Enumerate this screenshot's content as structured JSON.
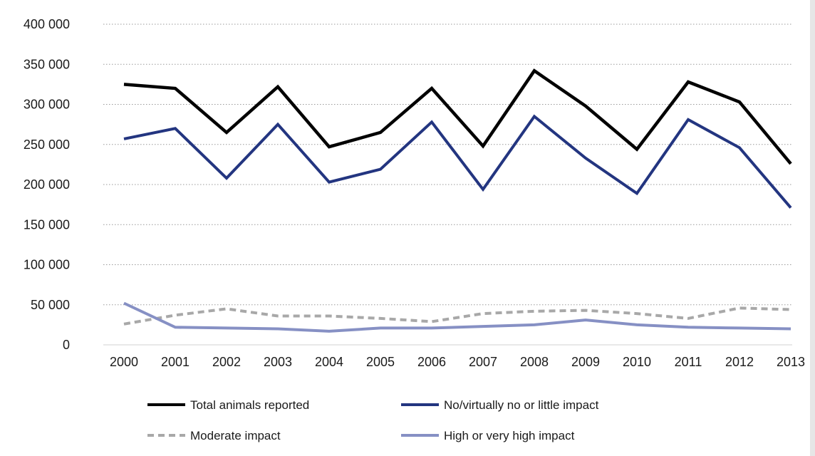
{
  "chart_data": {
    "type": "line",
    "title": "",
    "xlabel": "",
    "ylabel": "",
    "x": [
      "2000",
      "2001",
      "2002",
      "2003",
      "2004",
      "2005",
      "2006",
      "2007",
      "2008",
      "2009",
      "2010",
      "2011",
      "2012",
      "2013"
    ],
    "ylim": [
      0,
      400000
    ],
    "yticks": [
      0,
      50000,
      100000,
      150000,
      200000,
      250000,
      300000,
      350000,
      400000
    ],
    "ytick_labels": [
      "0",
      "50 000",
      "100 000",
      "150 000",
      "200 000",
      "250 000",
      "300 000",
      "350 000",
      "400 000"
    ],
    "grid": "horizontal dotted",
    "legend_placement": "bottom",
    "series": [
      {
        "name": "Total animals reported",
        "color": "#000000",
        "style": "solid",
        "values": [
          325000,
          320000,
          265000,
          322000,
          247000,
          265000,
          320000,
          248000,
          342000,
          298000,
          244000,
          328000,
          303000,
          226000
        ]
      },
      {
        "name": "No/virtually no or little impact",
        "color": "#233580",
        "style": "solid",
        "values": [
          257000,
          270000,
          208000,
          275000,
          203000,
          219000,
          278000,
          194000,
          285000,
          233000,
          189000,
          281000,
          246000,
          171000
        ]
      },
      {
        "name": "Moderate impact",
        "color": "#a8a8a8",
        "style": "dashed",
        "values": [
          26000,
          37000,
          45000,
          36000,
          36000,
          33000,
          29000,
          39000,
          42000,
          43000,
          39000,
          33000,
          46000,
          44000
        ]
      },
      {
        "name": "High or very high impact",
        "color": "#8690c4",
        "style": "solid",
        "values": [
          52000,
          22000,
          21000,
          20000,
          17000,
          21000,
          21000,
          23000,
          25000,
          31000,
          25000,
          22000,
          21000,
          20000
        ]
      }
    ]
  }
}
